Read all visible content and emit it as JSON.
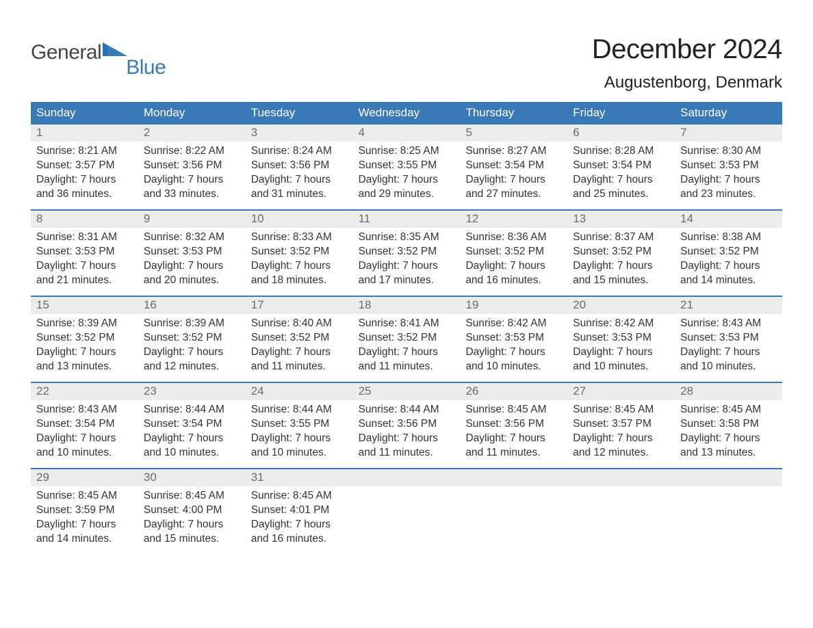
{
  "brand": {
    "part1": "General",
    "part2": "Blue",
    "tri_color": "#2f6fb0"
  },
  "title": "December 2024",
  "location": "Augustenborg, Denmark",
  "colors": {
    "header_bg": "#3a79b7",
    "header_text": "#ffffff",
    "row_sep": "#3a79b7",
    "daynum_bg": "#ececec",
    "daynum_text": "#6b6b6b",
    "body_text": "#333333",
    "page_bg": "#ffffff"
  },
  "day_headers": [
    "Sunday",
    "Monday",
    "Tuesday",
    "Wednesday",
    "Thursday",
    "Friday",
    "Saturday"
  ],
  "layout": {
    "weeks": 5,
    "cols": 7,
    "font_family": "Arial",
    "body_fontsize_pt": 12,
    "header_fontsize_pt": 13,
    "title_fontsize_pt": 30,
    "location_fontsize_pt": 18
  },
  "weeks": [
    [
      {
        "n": "1",
        "sr": "8:21 AM",
        "ss": "3:57 PM",
        "dl": "7 hours and 36 minutes."
      },
      {
        "n": "2",
        "sr": "8:22 AM",
        "ss": "3:56 PM",
        "dl": "7 hours and 33 minutes."
      },
      {
        "n": "3",
        "sr": "8:24 AM",
        "ss": "3:56 PM",
        "dl": "7 hours and 31 minutes."
      },
      {
        "n": "4",
        "sr": "8:25 AM",
        "ss": "3:55 PM",
        "dl": "7 hours and 29 minutes."
      },
      {
        "n": "5",
        "sr": "8:27 AM",
        "ss": "3:54 PM",
        "dl": "7 hours and 27 minutes."
      },
      {
        "n": "6",
        "sr": "8:28 AM",
        "ss": "3:54 PM",
        "dl": "7 hours and 25 minutes."
      },
      {
        "n": "7",
        "sr": "8:30 AM",
        "ss": "3:53 PM",
        "dl": "7 hours and 23 minutes."
      }
    ],
    [
      {
        "n": "8",
        "sr": "8:31 AM",
        "ss": "3:53 PM",
        "dl": "7 hours and 21 minutes."
      },
      {
        "n": "9",
        "sr": "8:32 AM",
        "ss": "3:53 PM",
        "dl": "7 hours and 20 minutes."
      },
      {
        "n": "10",
        "sr": "8:33 AM",
        "ss": "3:52 PM",
        "dl": "7 hours and 18 minutes."
      },
      {
        "n": "11",
        "sr": "8:35 AM",
        "ss": "3:52 PM",
        "dl": "7 hours and 17 minutes."
      },
      {
        "n": "12",
        "sr": "8:36 AM",
        "ss": "3:52 PM",
        "dl": "7 hours and 16 minutes."
      },
      {
        "n": "13",
        "sr": "8:37 AM",
        "ss": "3:52 PM",
        "dl": "7 hours and 15 minutes."
      },
      {
        "n": "14",
        "sr": "8:38 AM",
        "ss": "3:52 PM",
        "dl": "7 hours and 14 minutes."
      }
    ],
    [
      {
        "n": "15",
        "sr": "8:39 AM",
        "ss": "3:52 PM",
        "dl": "7 hours and 13 minutes."
      },
      {
        "n": "16",
        "sr": "8:39 AM",
        "ss": "3:52 PM",
        "dl": "7 hours and 12 minutes."
      },
      {
        "n": "17",
        "sr": "8:40 AM",
        "ss": "3:52 PM",
        "dl": "7 hours and 11 minutes."
      },
      {
        "n": "18",
        "sr": "8:41 AM",
        "ss": "3:52 PM",
        "dl": "7 hours and 11 minutes."
      },
      {
        "n": "19",
        "sr": "8:42 AM",
        "ss": "3:53 PM",
        "dl": "7 hours and 10 minutes."
      },
      {
        "n": "20",
        "sr": "8:42 AM",
        "ss": "3:53 PM",
        "dl": "7 hours and 10 minutes."
      },
      {
        "n": "21",
        "sr": "8:43 AM",
        "ss": "3:53 PM",
        "dl": "7 hours and 10 minutes."
      }
    ],
    [
      {
        "n": "22",
        "sr": "8:43 AM",
        "ss": "3:54 PM",
        "dl": "7 hours and 10 minutes."
      },
      {
        "n": "23",
        "sr": "8:44 AM",
        "ss": "3:54 PM",
        "dl": "7 hours and 10 minutes."
      },
      {
        "n": "24",
        "sr": "8:44 AM",
        "ss": "3:55 PM",
        "dl": "7 hours and 10 minutes."
      },
      {
        "n": "25",
        "sr": "8:44 AM",
        "ss": "3:56 PM",
        "dl": "7 hours and 11 minutes."
      },
      {
        "n": "26",
        "sr": "8:45 AM",
        "ss": "3:56 PM",
        "dl": "7 hours and 11 minutes."
      },
      {
        "n": "27",
        "sr": "8:45 AM",
        "ss": "3:57 PM",
        "dl": "7 hours and 12 minutes."
      },
      {
        "n": "28",
        "sr": "8:45 AM",
        "ss": "3:58 PM",
        "dl": "7 hours and 13 minutes."
      }
    ],
    [
      {
        "n": "29",
        "sr": "8:45 AM",
        "ss": "3:59 PM",
        "dl": "7 hours and 14 minutes."
      },
      {
        "n": "30",
        "sr": "8:45 AM",
        "ss": "4:00 PM",
        "dl": "7 hours and 15 minutes."
      },
      {
        "n": "31",
        "sr": "8:45 AM",
        "ss": "4:01 PM",
        "dl": "7 hours and 16 minutes."
      },
      null,
      null,
      null,
      null
    ]
  ],
  "labels": {
    "sunrise": "Sunrise: ",
    "sunset": "Sunset: ",
    "daylight": "Daylight: "
  }
}
